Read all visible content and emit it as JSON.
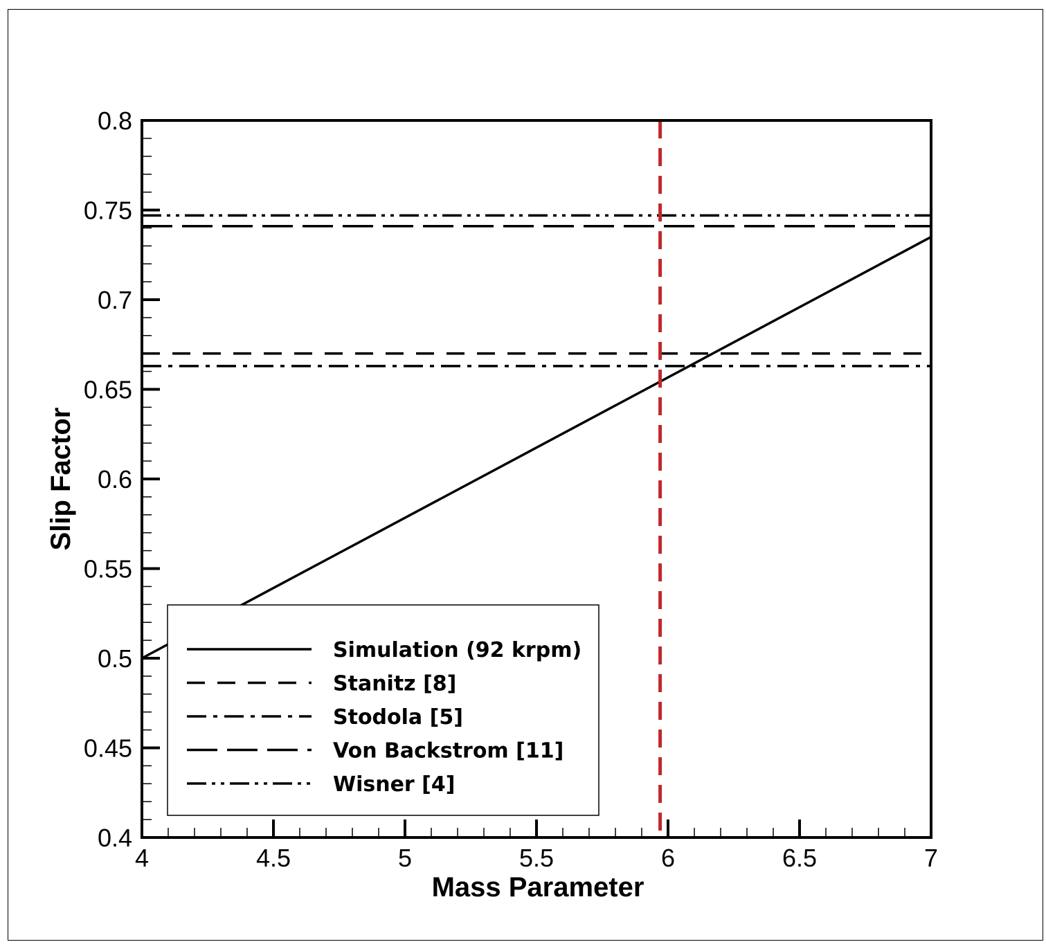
{
  "chart_data": {
    "type": "line",
    "title": "",
    "xlabel": "Mass Parameter",
    "ylabel": "Slip Factor",
    "xlim": [
      4,
      7
    ],
    "ylim": [
      0.4,
      0.8
    ],
    "xticks": [
      "4",
      "4.5",
      "5",
      "5.5",
      "6",
      "6.5",
      "7"
    ],
    "yticks": [
      "0.4",
      "0.45",
      "0.5",
      "0.55",
      "0.6",
      "0.65",
      "0.7",
      "0.75",
      "0.8"
    ],
    "grid": false,
    "legend_position": "bottom-left",
    "series": [
      {
        "name": "Simulation (92 krpm)",
        "style": "solid",
        "x": [
          4,
          7
        ],
        "y": [
          0.5,
          0.735
        ]
      },
      {
        "name": "Stanitz [8]",
        "style": "dashed",
        "x": [
          4,
          7
        ],
        "y": [
          0.67,
          0.67
        ]
      },
      {
        "name": "Stodola [5]",
        "style": "dash-dot",
        "x": [
          4,
          7
        ],
        "y": [
          0.663,
          0.663
        ]
      },
      {
        "name": "Von Backstrom [11]",
        "style": "long-dash",
        "x": [
          4,
          7
        ],
        "y": [
          0.741,
          0.741
        ]
      },
      {
        "name": "Wisner [4]",
        "style": "dash-dot-dot",
        "x": [
          4,
          7
        ],
        "y": [
          0.747,
          0.747
        ]
      }
    ],
    "reference_line": {
      "orientation": "vertical",
      "x": 5.97,
      "color": "#c0282d",
      "style": "dashed"
    }
  }
}
